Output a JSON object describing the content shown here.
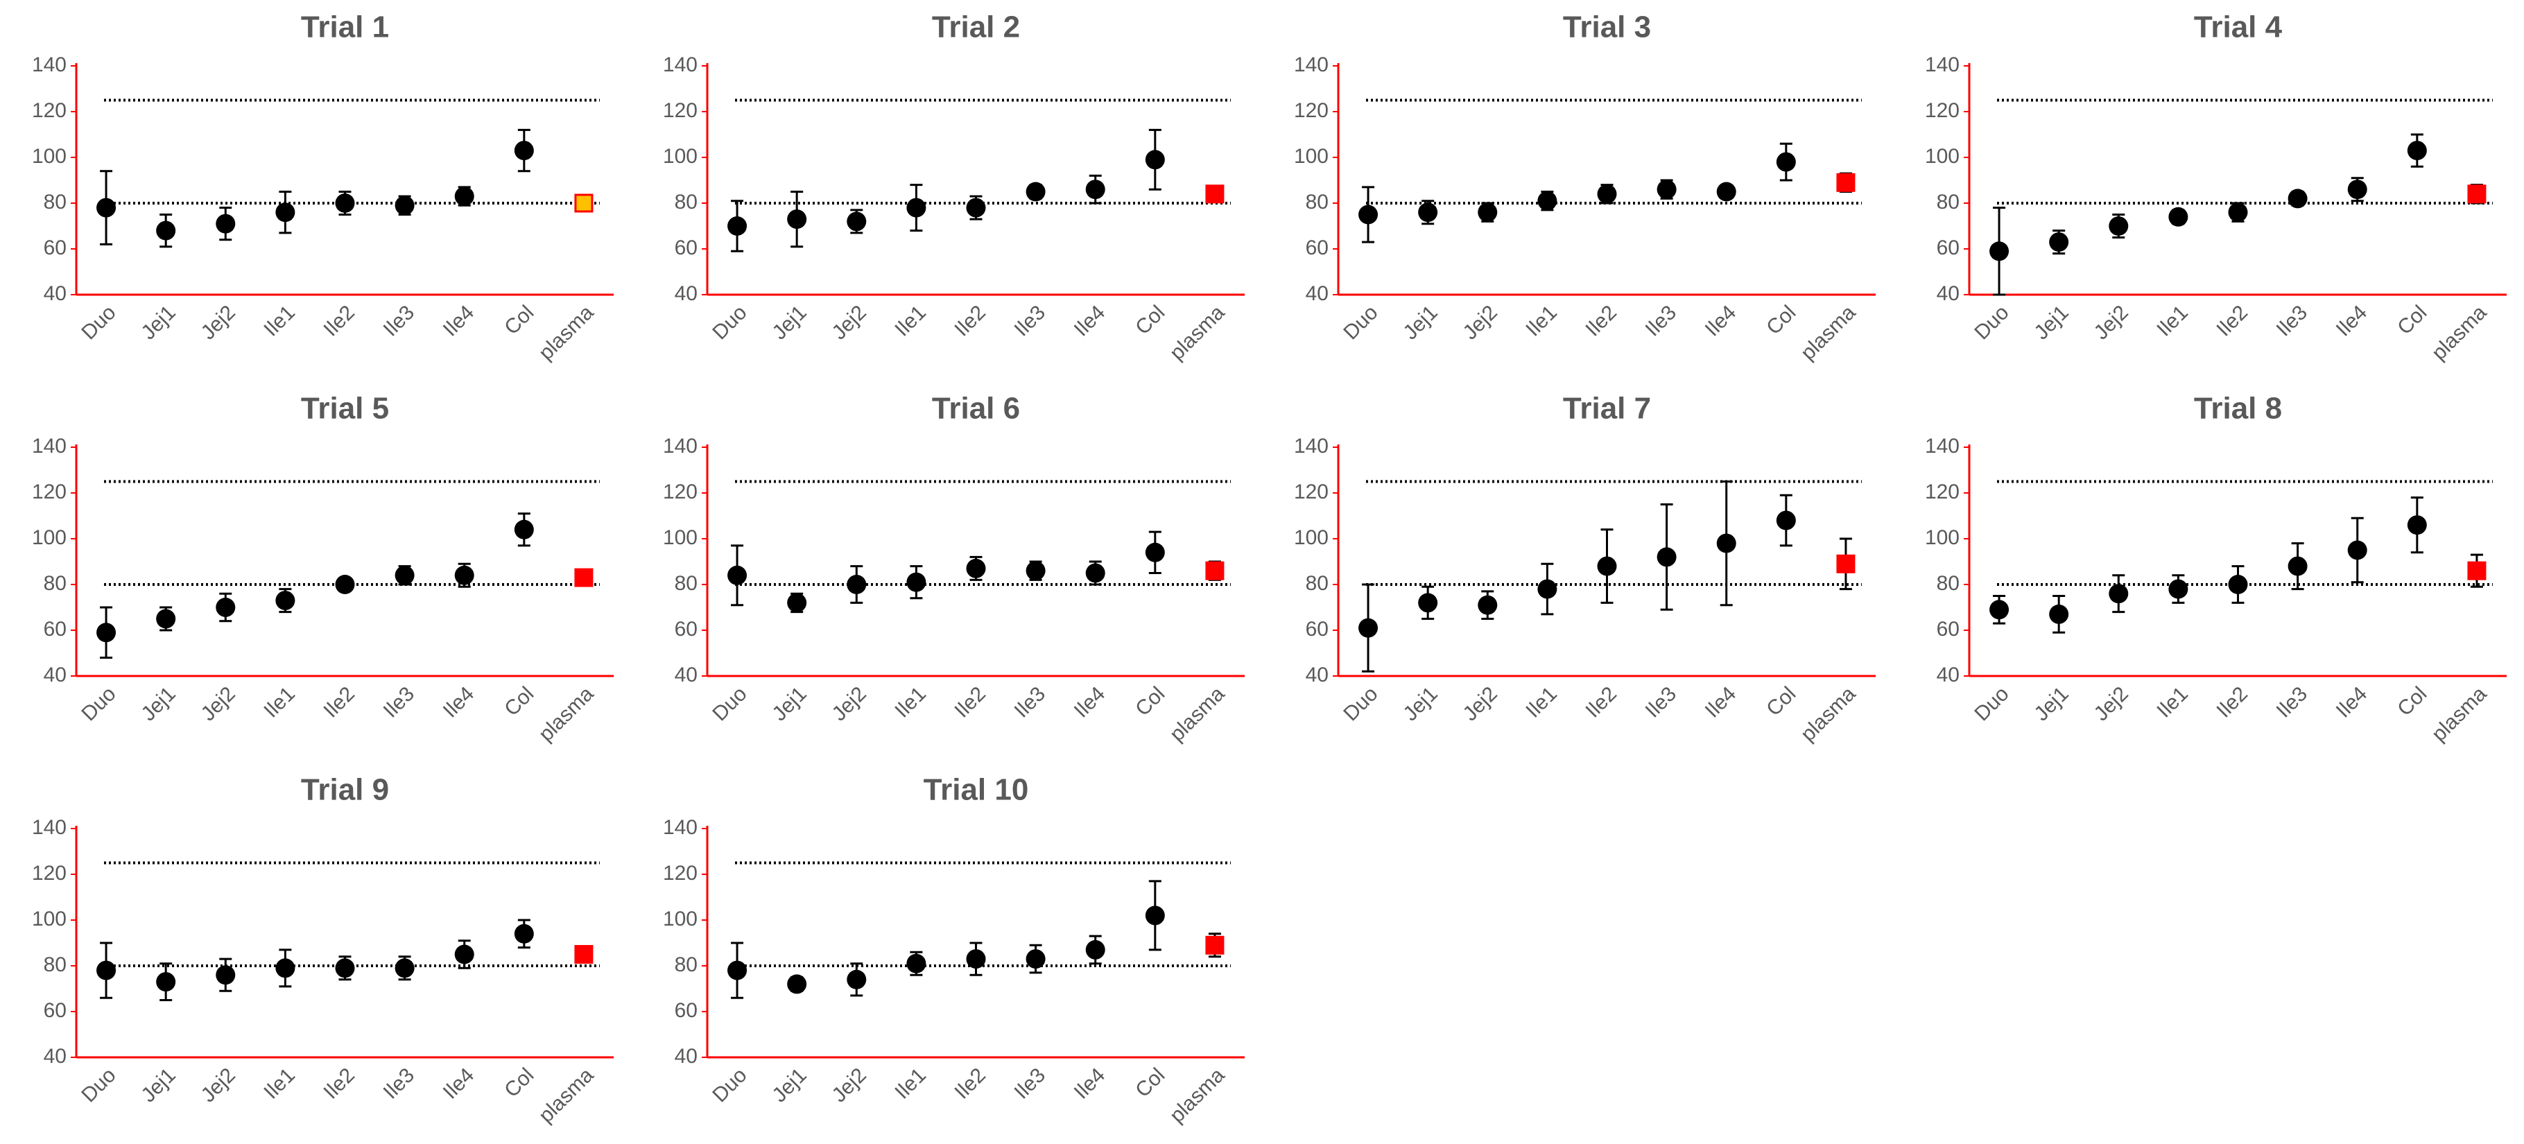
{
  "chart_data": [
    {
      "type": "errorbar",
      "title": "Trial 1",
      "categories": [
        "Duo",
        "Jej1",
        "Jej2",
        "Ile1",
        "Ile2",
        "Ile3",
        "Ile4",
        "Col",
        "plasma"
      ],
      "values": [
        78,
        68,
        71,
        76,
        80,
        79,
        83,
        103,
        80
      ],
      "errors": [
        16,
        7,
        7,
        9,
        5,
        4,
        4,
        9,
        3
      ],
      "colors": [
        "#000000",
        "#000000",
        "#000000",
        "#000000",
        "#000000",
        "#000000",
        "#000000",
        "#000000",
        "#ffc000"
      ],
      "markers": [
        "circle",
        "circle",
        "circle",
        "circle",
        "circle",
        "circle",
        "circle",
        "circle",
        "square"
      ],
      "hlines": [
        80,
        125
      ],
      "ylim": [
        40,
        140
      ],
      "yticks": [
        40,
        60,
        80,
        100,
        120,
        140
      ]
    },
    {
      "type": "errorbar",
      "title": "Trial 2",
      "categories": [
        "Duo",
        "Jej1",
        "Jej2",
        "Ile1",
        "Ile2",
        "Ile3",
        "Ile4",
        "Col",
        "plasma"
      ],
      "values": [
        70,
        73,
        72,
        78,
        78,
        85,
        86,
        99,
        84
      ],
      "errors": [
        11,
        12,
        5,
        10,
        5,
        3,
        6,
        13,
        2
      ],
      "colors": [
        "#000000",
        "#000000",
        "#000000",
        "#000000",
        "#000000",
        "#000000",
        "#000000",
        "#000000",
        "#ff0000"
      ],
      "markers": [
        "circle",
        "circle",
        "circle",
        "circle",
        "circle",
        "circle",
        "circle",
        "circle",
        "square"
      ],
      "hlines": [
        80,
        125
      ],
      "ylim": [
        40,
        140
      ],
      "yticks": [
        40,
        60,
        80,
        100,
        120,
        140
      ]
    },
    {
      "type": "errorbar",
      "title": "Trial 3",
      "categories": [
        "Duo",
        "Jej1",
        "Jej2",
        "Ile1",
        "Ile2",
        "Ile3",
        "Ile4",
        "Col",
        "plasma"
      ],
      "values": [
        75,
        76,
        76,
        81,
        84,
        86,
        85,
        98,
        89
      ],
      "errors": [
        12,
        5,
        4,
        4,
        4,
        4,
        2,
        8,
        4
      ],
      "colors": [
        "#000000",
        "#000000",
        "#000000",
        "#000000",
        "#000000",
        "#000000",
        "#000000",
        "#000000",
        "#ff0000"
      ],
      "markers": [
        "circle",
        "circle",
        "circle",
        "circle",
        "circle",
        "circle",
        "circle",
        "circle",
        "square"
      ],
      "hlines": [
        80,
        125
      ],
      "ylim": [
        40,
        140
      ],
      "yticks": [
        40,
        60,
        80,
        100,
        120,
        140
      ]
    },
    {
      "type": "errorbar",
      "title": "Trial 4",
      "categories": [
        "Duo",
        "Jej1",
        "Jej2",
        "Ile1",
        "Ile2",
        "Ile3",
        "Ile4",
        "Col",
        "plasma"
      ],
      "values": [
        59,
        63,
        70,
        74,
        76,
        82,
        86,
        103,
        84
      ],
      "errors": [
        19,
        5,
        5,
        3,
        4,
        3,
        5,
        7,
        4
      ],
      "colors": [
        "#000000",
        "#000000",
        "#000000",
        "#000000",
        "#000000",
        "#000000",
        "#000000",
        "#000000",
        "#ff0000"
      ],
      "markers": [
        "circle",
        "circle",
        "circle",
        "circle",
        "circle",
        "circle",
        "circle",
        "circle",
        "square"
      ],
      "hlines": [
        80,
        125
      ],
      "ylim": [
        40,
        140
      ],
      "yticks": [
        40,
        60,
        80,
        100,
        120,
        140
      ]
    },
    {
      "type": "errorbar",
      "title": "Trial 5",
      "categories": [
        "Duo",
        "Jej1",
        "Jej2",
        "Ile1",
        "Ile2",
        "Ile3",
        "Ile4",
        "Col",
        "plasma"
      ],
      "values": [
        59,
        65,
        70,
        73,
        80,
        84,
        84,
        104,
        83
      ],
      "errors": [
        11,
        5,
        6,
        5,
        2,
        4,
        5,
        7,
        2
      ],
      "colors": [
        "#000000",
        "#000000",
        "#000000",
        "#000000",
        "#000000",
        "#000000",
        "#000000",
        "#000000",
        "#ff0000"
      ],
      "markers": [
        "circle",
        "circle",
        "circle",
        "circle",
        "circle",
        "circle",
        "circle",
        "circle",
        "square"
      ],
      "hlines": [
        80,
        125
      ],
      "ylim": [
        40,
        140
      ],
      "yticks": [
        40,
        60,
        80,
        100,
        120,
        140
      ]
    },
    {
      "type": "errorbar",
      "title": "Trial 6",
      "categories": [
        "Duo",
        "Jej1",
        "Jej2",
        "Ile1",
        "Ile2",
        "Ile3",
        "Ile4",
        "Col",
        "plasma"
      ],
      "values": [
        84,
        72,
        80,
        81,
        87,
        86,
        85,
        94,
        86
      ],
      "errors": [
        13,
        4,
        8,
        7,
        5,
        4,
        5,
        9,
        4
      ],
      "colors": [
        "#000000",
        "#000000",
        "#000000",
        "#000000",
        "#000000",
        "#000000",
        "#000000",
        "#000000",
        "#ff0000"
      ],
      "markers": [
        "circle",
        "circle",
        "circle",
        "circle",
        "circle",
        "circle",
        "circle",
        "circle",
        "square"
      ],
      "hlines": [
        80,
        125
      ],
      "ylim": [
        40,
        140
      ],
      "yticks": [
        40,
        60,
        80,
        100,
        120,
        140
      ]
    },
    {
      "type": "errorbar",
      "title": "Trial 7",
      "categories": [
        "Duo",
        "Jej1",
        "Jej2",
        "Ile1",
        "Ile2",
        "Ile3",
        "Ile4",
        "Col",
        "plasma"
      ],
      "values": [
        61,
        72,
        71,
        78,
        88,
        92,
        98,
        108,
        89
      ],
      "errors": [
        19,
        7,
        6,
        11,
        16,
        23,
        27,
        11,
        11
      ],
      "colors": [
        "#000000",
        "#000000",
        "#000000",
        "#000000",
        "#000000",
        "#000000",
        "#000000",
        "#000000",
        "#ff0000"
      ],
      "markers": [
        "circle",
        "circle",
        "circle",
        "circle",
        "circle",
        "circle",
        "circle",
        "circle",
        "square"
      ],
      "hlines": [
        80,
        125
      ],
      "ylim": [
        40,
        140
      ],
      "yticks": [
        40,
        60,
        80,
        100,
        120,
        140
      ]
    },
    {
      "type": "errorbar",
      "title": "Trial 8",
      "categories": [
        "Duo",
        "Jej1",
        "Jej2",
        "Ile1",
        "Ile2",
        "Ile3",
        "Ile4",
        "Col",
        "plasma"
      ],
      "values": [
        69,
        67,
        76,
        78,
        80,
        88,
        95,
        106,
        86
      ],
      "errors": [
        6,
        8,
        8,
        6,
        8,
        10,
        14,
        12,
        7
      ],
      "colors": [
        "#000000",
        "#000000",
        "#000000",
        "#000000",
        "#000000",
        "#000000",
        "#000000",
        "#000000",
        "#ff0000"
      ],
      "markers": [
        "circle",
        "circle",
        "circle",
        "circle",
        "circle",
        "circle",
        "circle",
        "circle",
        "square"
      ],
      "hlines": [
        80,
        125
      ],
      "ylim": [
        40,
        140
      ],
      "yticks": [
        40,
        60,
        80,
        100,
        120,
        140
      ]
    },
    {
      "type": "errorbar",
      "title": "Trial 9",
      "categories": [
        "Duo",
        "Jej1",
        "Jej2",
        "Ile1",
        "Ile2",
        "Ile3",
        "Ile4",
        "Col",
        "plasma"
      ],
      "values": [
        78,
        73,
        76,
        79,
        79,
        79,
        85,
        94,
        85
      ],
      "errors": [
        12,
        8,
        7,
        8,
        5,
        5,
        6,
        6,
        3
      ],
      "colors": [
        "#000000",
        "#000000",
        "#000000",
        "#000000",
        "#000000",
        "#000000",
        "#000000",
        "#000000",
        "#ff0000"
      ],
      "markers": [
        "circle",
        "circle",
        "circle",
        "circle",
        "circle",
        "circle",
        "circle",
        "circle",
        "square"
      ],
      "hlines": [
        80,
        125
      ],
      "ylim": [
        40,
        140
      ],
      "yticks": [
        40,
        60,
        80,
        100,
        120,
        140
      ]
    },
    {
      "type": "errorbar",
      "title": "Trial 10",
      "categories": [
        "Duo",
        "Jej1",
        "Jej2",
        "Ile1",
        "Ile2",
        "Ile3",
        "Ile4",
        "Col",
        "plasma"
      ],
      "values": [
        78,
        72,
        74,
        81,
        83,
        83,
        87,
        102,
        89
      ],
      "errors": [
        12,
        3,
        7,
        5,
        7,
        6,
        6,
        15,
        5
      ],
      "colors": [
        "#000000",
        "#000000",
        "#000000",
        "#000000",
        "#000000",
        "#000000",
        "#000000",
        "#000000",
        "#ff0000"
      ],
      "markers": [
        "circle",
        "circle",
        "circle",
        "circle",
        "circle",
        "circle",
        "circle",
        "circle",
        "square"
      ],
      "hlines": [
        80,
        125
      ],
      "ylim": [
        40,
        140
      ],
      "yticks": [
        40,
        60,
        80,
        100,
        120,
        140
      ]
    }
  ]
}
